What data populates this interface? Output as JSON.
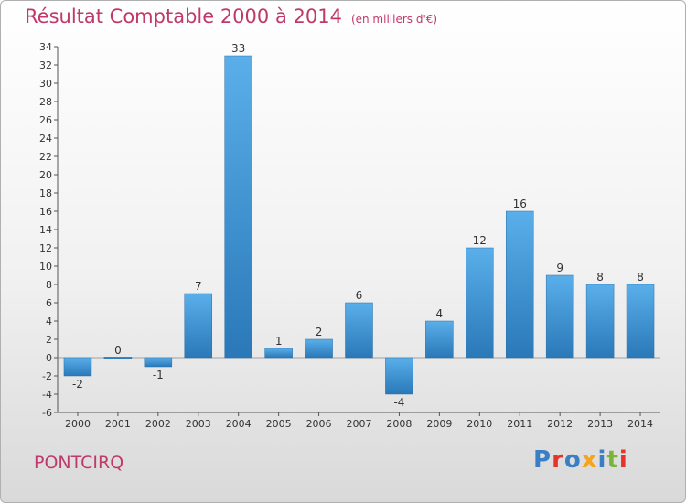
{
  "title": "Résultat Comptable 2000 à 2014",
  "subtitle": "(en milliers d'€)",
  "city": "PONTCIRQ",
  "logo": {
    "text": "Proxiti",
    "colors": [
      "#3a7fc4",
      "#e5342a",
      "#3a7fc4",
      "#f4a51c",
      "#3a7fc4",
      "#7bb43c",
      "#e5342a"
    ]
  },
  "colors": {
    "bar_top": "#5aafea",
    "bar_bottom": "#2a78b8",
    "text": "#333333",
    "accent": "#c0396b"
  },
  "chart_data": {
    "type": "bar",
    "title": "Résultat Comptable 2000 à 2014",
    "xlabel": "",
    "ylabel": "",
    "categories": [
      "2000",
      "2001",
      "2002",
      "2003",
      "2004",
      "2005",
      "2006",
      "2007",
      "2008",
      "2009",
      "2010",
      "2011",
      "2012",
      "2013",
      "2014"
    ],
    "values": [
      -2,
      0,
      -1,
      7,
      33,
      1,
      2,
      6,
      -4,
      4,
      12,
      16,
      9,
      8,
      8
    ],
    "value_labels": [
      "-2",
      "0",
      "-1",
      "7",
      "33",
      "1",
      "2",
      "6",
      "-4",
      "4",
      "12",
      "16",
      "9",
      "8",
      "8"
    ],
    "ylim": [
      -6,
      34
    ],
    "yticks": [
      -6,
      -4,
      -2,
      0,
      2,
      4,
      6,
      8,
      10,
      12,
      14,
      16,
      18,
      20,
      22,
      24,
      26,
      28,
      30,
      32,
      34
    ],
    "grid": false,
    "legend": "none"
  }
}
